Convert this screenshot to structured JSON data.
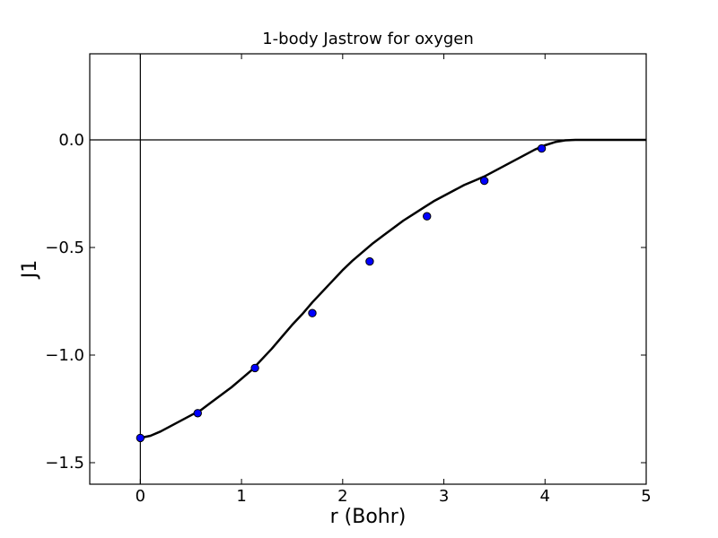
{
  "chart_data": {
    "type": "line",
    "title": "1-body Jastrow for oxygen",
    "xlabel": "r (Bohr)",
    "ylabel": "J1",
    "xlim": [
      -0.5,
      5
    ],
    "ylim": [
      -1.6,
      0.4
    ],
    "xticks": [
      0,
      1,
      2,
      3,
      4,
      5
    ],
    "xtick_labels": [
      "0",
      "1",
      "2",
      "3",
      "4",
      "5"
    ],
    "yticks": [
      -1.5,
      -1.0,
      -0.5,
      0.0
    ],
    "ytick_labels": [
      "−1.5",
      "−1.0",
      "−0.5",
      "0.0"
    ],
    "grid": false,
    "reference_lines": {
      "x": 0,
      "y": 0
    },
    "series": [
      {
        "kind": "curve",
        "color": "#000000",
        "x": [
          0.0,
          0.1,
          0.2,
          0.3,
          0.4,
          0.5,
          0.6,
          0.7,
          0.8,
          0.9,
          1.0,
          1.1,
          1.2,
          1.3,
          1.4,
          1.5,
          1.6,
          1.7,
          1.8,
          1.9,
          2.0,
          2.1,
          2.2,
          2.3,
          2.4,
          2.5,
          2.6,
          2.7,
          2.8,
          2.9,
          3.0,
          3.1,
          3.2,
          3.3,
          3.4,
          3.5,
          3.6,
          3.7,
          3.8,
          3.9,
          4.0,
          4.1,
          4.2,
          4.3,
          4.4,
          4.5,
          4.6,
          4.8,
          5.0
        ],
        "y": [
          -1.385,
          -1.375,
          -1.355,
          -1.33,
          -1.305,
          -1.28,
          -1.255,
          -1.22,
          -1.185,
          -1.15,
          -1.11,
          -1.07,
          -1.02,
          -0.97,
          -0.915,
          -0.86,
          -0.81,
          -0.755,
          -0.705,
          -0.655,
          -0.605,
          -0.56,
          -0.52,
          -0.48,
          -0.445,
          -0.41,
          -0.375,
          -0.345,
          -0.315,
          -0.285,
          -0.26,
          -0.235,
          -0.21,
          -0.19,
          -0.17,
          -0.145,
          -0.12,
          -0.095,
          -0.07,
          -0.045,
          -0.025,
          -0.01,
          -0.002,
          0.0,
          0.0,
          0.0,
          0.0,
          0.0,
          0.0
        ]
      },
      {
        "kind": "points",
        "color": "#0000ff",
        "x": [
          0.0,
          0.567,
          1.133,
          1.7,
          2.267,
          2.833,
          3.4,
          3.967
        ],
        "y": [
          -1.385,
          -1.27,
          -1.06,
          -0.805,
          -0.565,
          -0.355,
          -0.19,
          -0.04
        ]
      }
    ]
  }
}
